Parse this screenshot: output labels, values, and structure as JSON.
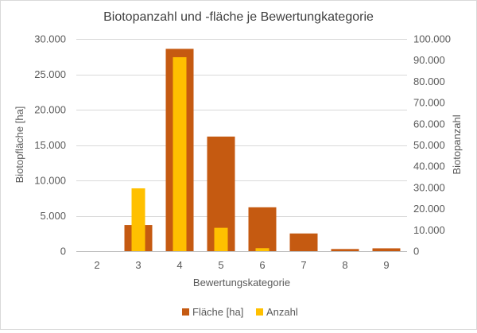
{
  "chart_data": {
    "type": "bar",
    "title": "Biotopanzahl und -fläche je Bewertungkategorie",
    "xlabel": "Bewertungskategorie",
    "ylabel_left": "Biotopfläche [ha]",
    "ylabel_right": "Biotopanzahl",
    "categories": [
      "2",
      "3",
      "4",
      "5",
      "6",
      "7",
      "8",
      "9"
    ],
    "y_left": {
      "min": 0,
      "max": 30000,
      "step": 5000,
      "tick_labels": [
        "0",
        "5.000",
        "10.000",
        "15.000",
        "20.000",
        "25.000",
        "30.000"
      ]
    },
    "y_right": {
      "min": 0,
      "max": 100000,
      "step": 10000,
      "tick_labels": [
        "0",
        "10.000",
        "20.000",
        "30.000",
        "40.000",
        "50.000",
        "60.000",
        "70.000",
        "80.000",
        "90.000",
        "100.000"
      ]
    },
    "series": [
      {
        "name": "Fläche [ha]",
        "axis": "left",
        "color": "#C55A11",
        "values": [
          0,
          3700,
          28600,
          16200,
          6200,
          2500,
          300,
          400
        ]
      },
      {
        "name": "Anzahl",
        "axis": "right",
        "color": "#FFC000",
        "values": [
          0,
          29600,
          91400,
          11000,
          1400,
          0,
          0,
          0
        ]
      }
    ],
    "grid": true,
    "legend_position": "bottom"
  }
}
